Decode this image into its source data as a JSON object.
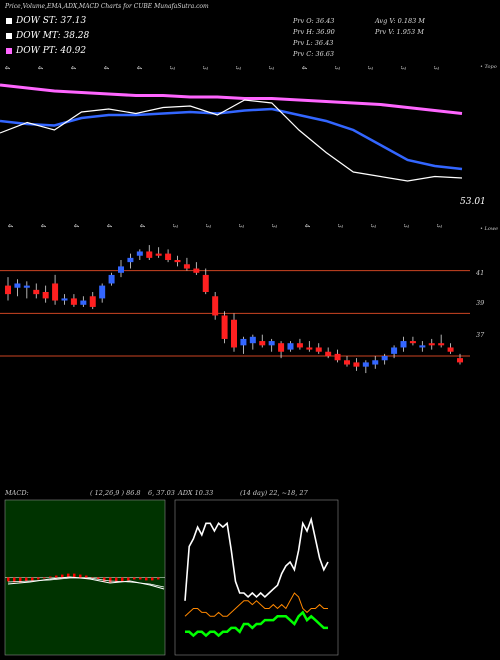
{
  "header": {
    "title": "Price,Volume,EMA,ADX,MACD Charts for CUBE MunafaSutra.com",
    "legend": [
      {
        "label": "DOW ST: 37.13",
        "color": "#ffffff"
      },
      {
        "label": "DOW MT: 38.28",
        "color": "#ffffff"
      },
      {
        "label": "DOW PT: 40.92",
        "color": "#ff66ff"
      }
    ],
    "prev_stats": [
      {
        "label": "Prv  O: 36.43",
        "col": 0,
        "row": 0
      },
      {
        "label": "Prv  H: 36.90",
        "col": 0,
        "row": 1
      },
      {
        "label": "Prv  L: 36.43",
        "col": 0,
        "row": 2
      },
      {
        "label": "Prv  C: 36.63",
        "col": 0,
        "row": 3
      },
      {
        "label": "Avg V: 0.183 M",
        "col": 1,
        "row": 0
      },
      {
        "label": "Prv  V: 1.953 M",
        "col": 1,
        "row": 1
      }
    ]
  },
  "ema_panel": {
    "date_labels_top": [
      "4",
      "4",
      "4",
      "4",
      "4",
      "3",
      "3",
      "3",
      "3",
      "4",
      "3",
      "3",
      "3",
      "3"
    ],
    "date_labels_bottom": [
      "4",
      "4",
      "4",
      "4",
      "4",
      "3",
      "3",
      "3",
      "3",
      "4",
      "3",
      "3",
      "3",
      "3"
    ],
    "corner_label": "• Topo",
    "value_label": "53.01",
    "value_color": "#ffffff"
  },
  "price_panel": {
    "corner_label": "• Lowe",
    "price_levels": [
      "41",
      "39",
      "37"
    ],
    "level_color": "#cc4422",
    "up_color": "#3366ff",
    "down_color": "#ff2020"
  },
  "macd_panel": {
    "label": "MACD:",
    "params": "( 12,26,9 ) 86.8",
    "values": "6, 37.03",
    "bg_color": "#003300",
    "hist_color": "#ff0000"
  },
  "adx_panel": {
    "label": "ADX 10.33",
    "params": "(14  day) 22, ~18, 27",
    "adx_color": "#ffffff",
    "di_plus_color": "#00ff00",
    "di_minus_color": "#ff8800"
  },
  "chart_data": [
    {
      "type": "line",
      "name": "ema_panel",
      "series": [
        {
          "name": "",
          "color": "#ff66ff",
          "values": [
            45.0,
            44.8,
            44.6,
            44.5,
            44.4,
            44.3,
            44.3,
            44.2,
            44.2,
            44.1,
            44.1,
            44.0,
            43.9,
            43.8,
            43.7,
            43.5,
            43.3,
            43.1
          ]
        },
        {
          "name": "",
          "color": "#3366ff",
          "values": [
            42.6,
            42.4,
            42.3,
            42.8,
            43.0,
            43.0,
            43.1,
            43.2,
            43.1,
            43.3,
            43.4,
            43.0,
            42.6,
            42.0,
            41.0,
            40.0,
            39.6,
            39.4
          ]
        },
        {
          "name": "",
          "color": "#ffffff",
          "values": [
            41.8,
            42.5,
            42.0,
            43.2,
            43.4,
            43.1,
            43.5,
            43.6,
            43.0,
            44.0,
            43.8,
            42.0,
            40.5,
            39.2,
            38.9,
            38.6,
            38.9,
            38.8
          ]
        }
      ],
      "ylim": [
        37,
        46
      ]
    },
    {
      "type": "candlestick",
      "name": "price_panel",
      "candles": [
        {
          "o": 40.3,
          "h": 40.7,
          "l": 39.6,
          "c": 39.9
        },
        {
          "o": 40.2,
          "h": 40.6,
          "l": 39.8,
          "c": 40.4
        },
        {
          "o": 40.2,
          "h": 40.5,
          "l": 39.7,
          "c": 40.3
        },
        {
          "o": 40.1,
          "h": 40.4,
          "l": 39.7,
          "c": 39.9
        },
        {
          "o": 40.0,
          "h": 40.3,
          "l": 39.5,
          "c": 39.7
        },
        {
          "o": 40.4,
          "h": 40.8,
          "l": 39.4,
          "c": 39.6
        },
        {
          "o": 39.6,
          "h": 39.9,
          "l": 39.4,
          "c": 39.7
        },
        {
          "o": 39.7,
          "h": 39.9,
          "l": 39.3,
          "c": 39.4
        },
        {
          "o": 39.4,
          "h": 39.8,
          "l": 39.3,
          "c": 39.6
        },
        {
          "o": 39.8,
          "h": 40.0,
          "l": 39.2,
          "c": 39.3
        },
        {
          "o": 39.7,
          "h": 40.4,
          "l": 39.5,
          "c": 40.3
        },
        {
          "o": 40.4,
          "h": 40.9,
          "l": 40.3,
          "c": 40.8
        },
        {
          "o": 40.9,
          "h": 41.5,
          "l": 40.7,
          "c": 41.2
        },
        {
          "o": 41.4,
          "h": 41.8,
          "l": 41.1,
          "c": 41.6
        },
        {
          "o": 41.7,
          "h": 42.0,
          "l": 41.5,
          "c": 41.9
        },
        {
          "o": 41.9,
          "h": 42.2,
          "l": 41.5,
          "c": 41.6
        },
        {
          "o": 41.8,
          "h": 42.1,
          "l": 41.6,
          "c": 41.7
        },
        {
          "o": 41.8,
          "h": 42.0,
          "l": 41.4,
          "c": 41.5
        },
        {
          "o": 41.5,
          "h": 41.7,
          "l": 41.2,
          "c": 41.4
        },
        {
          "o": 41.3,
          "h": 41.6,
          "l": 41.0,
          "c": 41.1
        },
        {
          "o": 41.1,
          "h": 41.4,
          "l": 40.8,
          "c": 40.9
        },
        {
          "o": 40.8,
          "h": 41.1,
          "l": 39.9,
          "c": 40.0
        },
        {
          "o": 39.8,
          "h": 40.0,
          "l": 38.7,
          "c": 38.9
        },
        {
          "o": 38.9,
          "h": 39.1,
          "l": 37.6,
          "c": 37.8
        },
        {
          "o": 38.7,
          "h": 39.0,
          "l": 37.2,
          "c": 37.4
        },
        {
          "o": 37.5,
          "h": 37.9,
          "l": 37.1,
          "c": 37.8
        },
        {
          "o": 37.6,
          "h": 38.0,
          "l": 37.3,
          "c": 37.9
        },
        {
          "o": 37.7,
          "h": 38.0,
          "l": 37.4,
          "c": 37.5
        },
        {
          "o": 37.5,
          "h": 37.8,
          "l": 37.2,
          "c": 37.7
        },
        {
          "o": 37.6,
          "h": 37.7,
          "l": 36.9,
          "c": 37.2
        },
        {
          "o": 37.3,
          "h": 37.7,
          "l": 37.2,
          "c": 37.6
        },
        {
          "o": 37.6,
          "h": 37.8,
          "l": 37.3,
          "c": 37.4
        },
        {
          "o": 37.4,
          "h": 37.7,
          "l": 37.2,
          "c": 37.3
        },
        {
          "o": 37.4,
          "h": 37.6,
          "l": 37.1,
          "c": 37.2
        },
        {
          "o": 37.2,
          "h": 37.4,
          "l": 36.9,
          "c": 37.0
        },
        {
          "o": 37.1,
          "h": 37.3,
          "l": 36.7,
          "c": 36.8
        },
        {
          "o": 36.8,
          "h": 37.0,
          "l": 36.5,
          "c": 36.6
        },
        {
          "o": 36.7,
          "h": 36.9,
          "l": 36.3,
          "c": 36.5
        },
        {
          "o": 36.5,
          "h": 36.8,
          "l": 36.2,
          "c": 36.7
        },
        {
          "o": 36.6,
          "h": 37.0,
          "l": 36.4,
          "c": 36.8
        },
        {
          "o": 36.8,
          "h": 37.1,
          "l": 36.6,
          "c": 37.0
        },
        {
          "o": 37.1,
          "h": 37.5,
          "l": 36.9,
          "c": 37.4
        },
        {
          "o": 37.4,
          "h": 37.9,
          "l": 37.2,
          "c": 37.7
        },
        {
          "o": 37.7,
          "h": 37.9,
          "l": 37.5,
          "c": 37.6
        },
        {
          "o": 37.4,
          "h": 37.7,
          "l": 37.2,
          "c": 37.5
        },
        {
          "o": 37.6,
          "h": 37.8,
          "l": 37.3,
          "c": 37.5
        },
        {
          "o": 37.6,
          "h": 38.0,
          "l": 37.4,
          "c": 37.5
        },
        {
          "o": 37.4,
          "h": 37.6,
          "l": 37.1,
          "c": 37.2
        },
        {
          "o": 36.9,
          "h": 37.1,
          "l": 36.6,
          "c": 36.7
        }
      ],
      "ylim": [
        34,
        43
      ]
    },
    {
      "type": "bar",
      "name": "macd_hist",
      "values": [
        -0.4,
        -0.5,
        -0.5,
        -0.4,
        -0.3,
        -0.2,
        -0.1,
        0.1,
        0.2,
        0.3,
        0.4,
        0.4,
        0.3,
        0.2,
        0.0,
        -0.2,
        -0.4,
        -0.5,
        -0.5,
        -0.4,
        -0.3,
        -0.2,
        -0.2,
        -0.3,
        -0.3,
        -0.2
      ],
      "ylim": [
        -8,
        8
      ]
    },
    {
      "type": "line",
      "name": "adx_panel",
      "series": [
        {
          "name": "",
          "values": [
            14,
            28,
            30,
            33,
            31,
            34,
            34,
            32,
            34,
            33,
            34,
            27,
            19,
            16,
            16,
            15,
            16,
            15,
            16,
            15,
            16,
            17,
            18,
            21,
            23,
            24,
            22,
            27,
            34,
            32,
            35,
            30,
            25,
            22,
            24
          ]
        },
        {
          "name": "",
          "values": [
            10,
            11,
            12,
            12,
            11,
            11,
            10,
            10,
            11,
            10,
            10,
            11,
            12,
            13,
            14,
            14,
            13,
            14,
            13,
            12,
            12,
            13,
            12,
            13,
            12,
            14,
            16,
            15,
            12,
            11,
            12,
            12,
            13,
            12,
            12
          ]
        },
        {
          "name": "",
          "values": [
            6,
            6,
            5,
            6,
            6,
            5,
            6,
            6,
            5,
            6,
            6,
            7,
            7,
            6,
            8,
            8,
            7,
            8,
            8,
            9,
            9,
            9,
            10,
            10,
            10,
            9,
            8,
            10,
            11,
            9,
            10,
            9,
            8,
            7,
            7
          ]
        }
      ],
      "ylim": [
        0,
        40
      ]
    }
  ]
}
